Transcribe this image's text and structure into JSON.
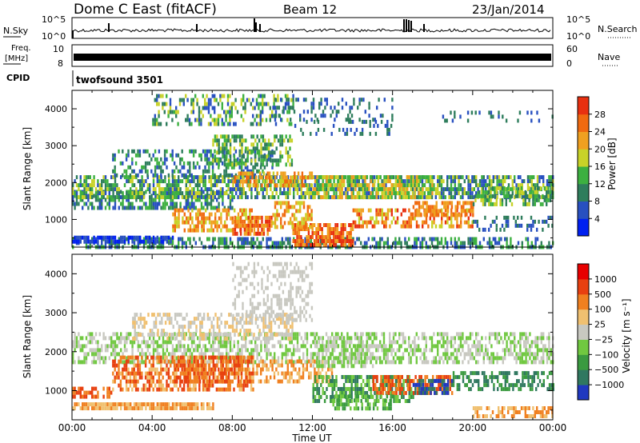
{
  "header": {
    "station": "Dome C East (fitACF)",
    "beam": "Beam 12",
    "date": "23/Jan/2014"
  },
  "top_panels": {
    "nsky_label": "N.Sky",
    "nsky_ticks": [
      "10^5",
      "10^0"
    ],
    "nsearch_label": "N.Search",
    "nsearch_ticks": [
      "10^5",
      "10^0"
    ],
    "freq_label": "Freq.",
    "freq_unit": "[MHz]",
    "freq_ticks": [
      "10",
      "8"
    ],
    "nave_label": "Nave",
    "nave_ticks": [
      "60",
      "0"
    ],
    "cpid_label": "CPID",
    "cpid_value": "twofsound 3501"
  },
  "chart_data": [
    {
      "type": "heatmap",
      "name": "power",
      "ylabel": "Slant Range [km]",
      "ylim": [
        250,
        4500
      ],
      "yticks": [
        1000,
        2000,
        3000,
        4000
      ],
      "xlim": [
        0,
        24
      ],
      "xticks": [
        0,
        4,
        8,
        12,
        16,
        20,
        24
      ],
      "colorbar": {
        "label": "Power [dB]",
        "range": [
          0,
          32
        ],
        "ticks": [
          4,
          8,
          12,
          16,
          20,
          24,
          28
        ],
        "colors": [
          "#0020f0",
          "#2850c0",
          "#2e7d5c",
          "#3cb040",
          "#c8d228",
          "#f0a020",
          "#f06a10",
          "#e83010"
        ]
      }
    },
    {
      "type": "heatmap",
      "name": "velocity",
      "ylabel": "Slant Range [km]",
      "ylim": [
        250,
        4500
      ],
      "yticks": [
        1000,
        2000,
        3000,
        4000
      ],
      "xlim": [
        0,
        24
      ],
      "xticks": [
        0,
        4,
        8,
        12,
        16,
        20,
        24
      ],
      "xlabel": "Time UT",
      "xticklabels": [
        "00:00",
        "04:00",
        "08:00",
        "12:00",
        "16:00",
        "20:00",
        "00:00"
      ],
      "colorbar": {
        "label": "Velocity [m s⁻¹]",
        "ticks": [
          "1000",
          "500",
          "100",
          "25",
          "−25",
          "−100",
          "−500",
          "−1000"
        ],
        "colors": [
          "#2038c0",
          "#307860",
          "#3a9a40",
          "#70c840",
          "#c8c8c0",
          "#f0c070",
          "#f08020",
          "#e84010",
          "#e80000"
        ]
      }
    }
  ]
}
